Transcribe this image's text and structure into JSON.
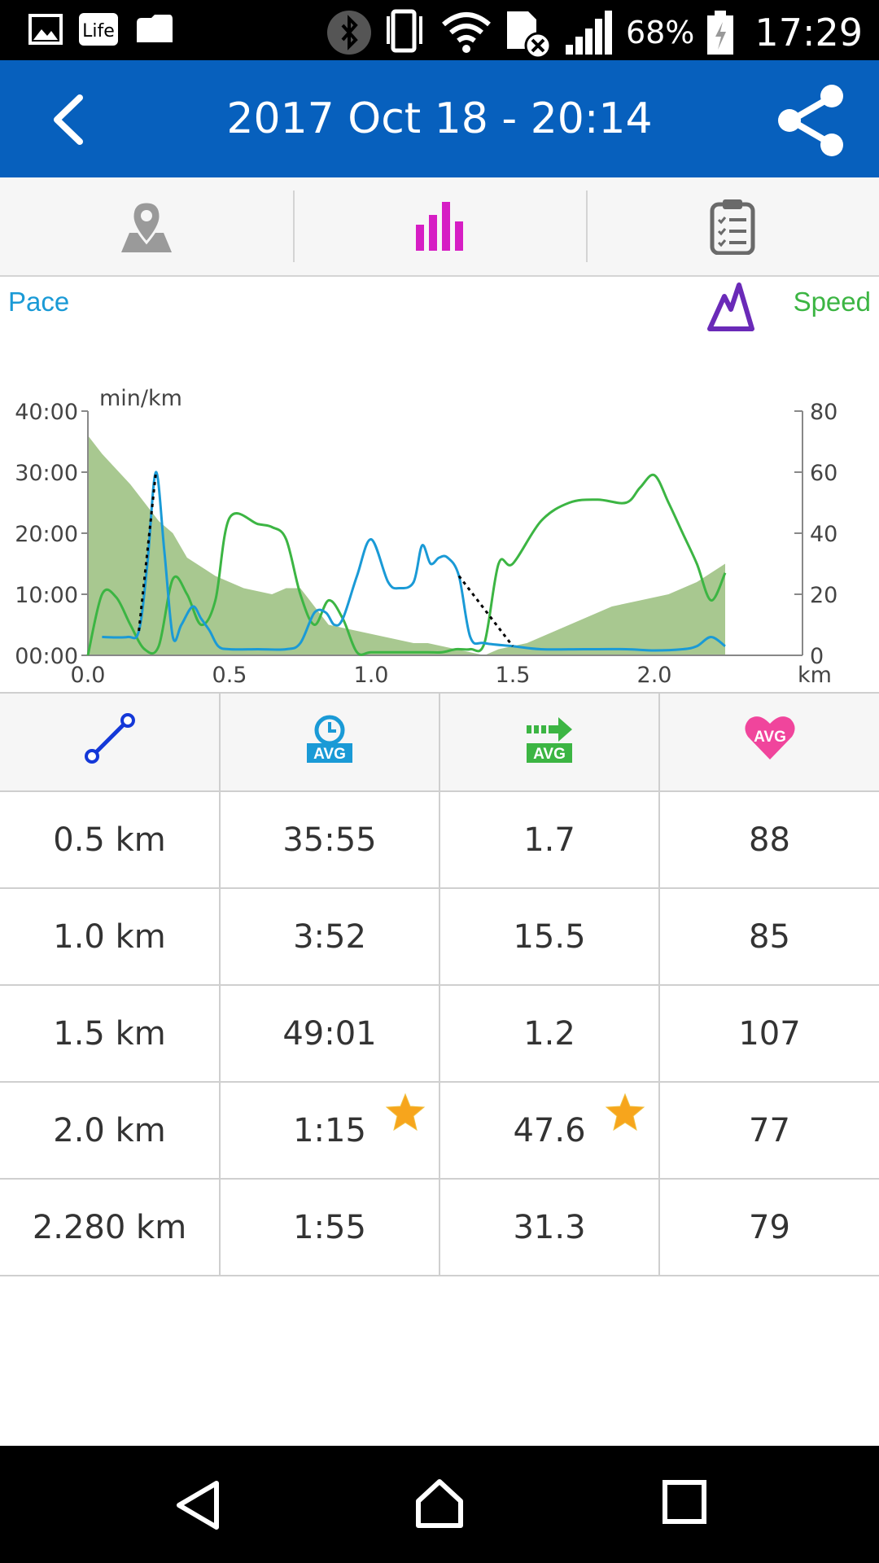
{
  "status_bar": {
    "battery_percent": "68%",
    "time": "17:29",
    "icons": [
      "gallery-icon",
      "life-icon",
      "cloud-icon",
      "bluetooth-icon",
      "vibrate-icon",
      "wifi-icon",
      "sim-error-icon",
      "signal-icon",
      "battery-icon"
    ]
  },
  "app_bar": {
    "title": "2017 Oct 18 - 20:14",
    "back_icon": "back-chevron-icon",
    "share_icon": "share-icon",
    "background": "#0760bd"
  },
  "tabs": [
    {
      "name": "map",
      "icon": "map-pin-icon",
      "active": false
    },
    {
      "name": "chart",
      "icon": "bar-chart-icon",
      "active": true,
      "color": "#d61ec4"
    },
    {
      "name": "summary",
      "icon": "clipboard-icon",
      "active": false
    }
  ],
  "chart_labels": {
    "pace": "Pace",
    "speed": "Speed",
    "pace_color": "#1a9ad6",
    "speed_color": "#3cb543",
    "altitude_color": "#a8c890",
    "altitude_icon": "mountain-icon"
  },
  "chart_data": {
    "type": "line",
    "ylabel": "min/km",
    "xlabel": "km",
    "xlim": [
      0,
      2.5
    ],
    "ylim": [
      0,
      40
    ],
    "ylim_right": [
      0,
      80
    ],
    "x_ticks": [
      "0.0",
      "0.5",
      "1.0",
      "1.5",
      "2.0"
    ],
    "y_ticks_left": [
      "00:00",
      "10:00",
      "20:00",
      "30:00",
      "40:00"
    ],
    "y_ticks_right": [
      "0",
      "20",
      "40",
      "60",
      "80"
    ],
    "grid": false,
    "series": [
      {
        "name": "Pace",
        "x": [
          0.05,
          0.14,
          0.18,
          0.21,
          0.24,
          0.27,
          0.3,
          0.33,
          0.37,
          0.4,
          0.43,
          0.46,
          0.5,
          0.6,
          0.7,
          0.75,
          0.8,
          0.84,
          0.87,
          0.9,
          0.95,
          1.0,
          1.06,
          1.1,
          1.15,
          1.18,
          1.21,
          1.24,
          1.27,
          1.31,
          1.35,
          1.4,
          1.5,
          1.6,
          1.75,
          1.9,
          2.0,
          2.1,
          2.15,
          2.2,
          2.25
        ],
        "values": [
          3,
          3,
          4,
          15,
          30,
          17,
          3,
          5,
          8,
          6,
          4,
          1.5,
          1,
          1,
          1,
          2,
          7,
          7,
          5,
          6,
          13,
          19,
          12,
          11,
          12,
          18,
          15,
          16,
          16,
          13,
          3,
          2,
          1.5,
          1,
          1,
          1,
          0.8,
          1,
          1.5,
          3,
          1.5
        ]
      },
      {
        "name": "Speed",
        "x": [
          0,
          0.05,
          0.1,
          0.15,
          0.2,
          0.25,
          0.3,
          0.35,
          0.4,
          0.45,
          0.5,
          0.6,
          0.65,
          0.7,
          0.75,
          0.8,
          0.85,
          0.9,
          0.95,
          1.0,
          1.1,
          1.2,
          1.25,
          1.3,
          1.35,
          1.4,
          1.45,
          1.5,
          1.6,
          1.7,
          1.8,
          1.9,
          1.95,
          2.0,
          2.05,
          2.1,
          2.15,
          2.2,
          2.25
        ],
        "values": [
          0,
          20,
          19,
          10,
          2,
          3,
          25,
          20,
          10,
          18,
          45,
          43,
          42,
          38,
          20,
          10,
          18,
          12,
          1,
          1,
          1,
          1,
          1,
          2,
          2,
          4,
          30,
          30,
          44,
          50,
          51,
          50,
          55,
          59,
          50,
          40,
          30,
          18,
          27
        ]
      },
      {
        "name": "Altitude",
        "x": [
          0,
          0.05,
          0.15,
          0.25,
          0.3,
          0.35,
          0.45,
          0.55,
          0.65,
          0.7,
          0.75,
          0.85,
          0.95,
          1.05,
          1.15,
          1.2,
          1.3,
          1.4,
          1.45,
          1.55,
          1.65,
          1.75,
          1.85,
          1.95,
          2.05,
          2.15,
          2.25
        ],
        "values": [
          36,
          33,
          28,
          22,
          20,
          16,
          13,
          11,
          10,
          11,
          11,
          5,
          4,
          3,
          2,
          2,
          1,
          0,
          1,
          2,
          4,
          6,
          8,
          9,
          10,
          12,
          15
        ]
      }
    ]
  },
  "splits": {
    "headers": [
      "distance-icon",
      "avg-pace-icon",
      "avg-speed-icon",
      "avg-heart-rate-icon"
    ],
    "rows": [
      {
        "distance": "0.5 km",
        "pace": "35:55",
        "speed": "1.7",
        "heart": "88"
      },
      {
        "distance": "1.0 km",
        "pace": "3:52",
        "speed": "15.5",
        "heart": "85"
      },
      {
        "distance": "1.5 km",
        "pace": "49:01",
        "speed": "1.2",
        "heart": "107"
      },
      {
        "distance": "2.0 km",
        "pace": "1:15",
        "speed": "47.6",
        "heart": "77",
        "pace_best": true,
        "speed_best": true
      },
      {
        "distance": "2.280 km",
        "pace": "1:55",
        "speed": "31.3",
        "heart": "79"
      }
    ],
    "avg_label": "AVG"
  },
  "nav_bar": {
    "icons": [
      "nav-back-icon",
      "nav-home-icon",
      "nav-recents-icon"
    ]
  }
}
